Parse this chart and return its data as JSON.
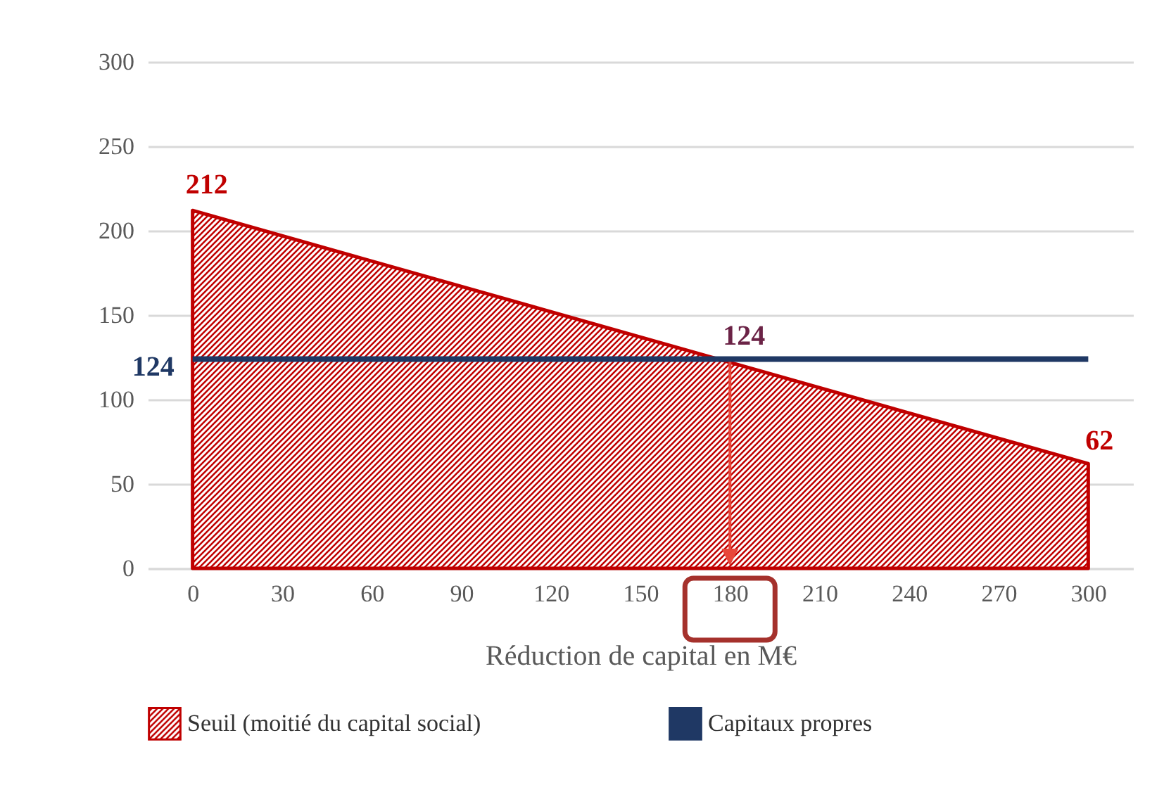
{
  "chart_data": {
    "type": "area",
    "xlabel": "Réduction de capital  en M€",
    "series": [
      {
        "name": "Seuil (moitié du capital social)",
        "color": "#c00000",
        "values": [
          212,
          62
        ]
      },
      {
        "name": "Capitaux propres",
        "type": "line",
        "color": "#1f3864",
        "values": [
          124,
          124
        ]
      }
    ],
    "annotations": [
      {
        "text": "212",
        "x": 0,
        "y": 212
      },
      {
        "text": "124",
        "x": 180,
        "y": 124
      },
      {
        "text": "124",
        "x": 0,
        "y": 124
      },
      {
        "text": "62",
        "x": 300,
        "y": 62
      }
    ],
    "x": [
      0,
      300
    ],
    "xlim": [
      -15,
      315
    ],
    "xticks": [
      0,
      30,
      60,
      90,
      120,
      150,
      180,
      210,
      240,
      270,
      300
    ],
    "ylim": [
      0,
      300
    ],
    "yticks": [
      0,
      50,
      100,
      150,
      200,
      250,
      300
    ],
    "grid": "y",
    "legend": "bottom"
  }
}
